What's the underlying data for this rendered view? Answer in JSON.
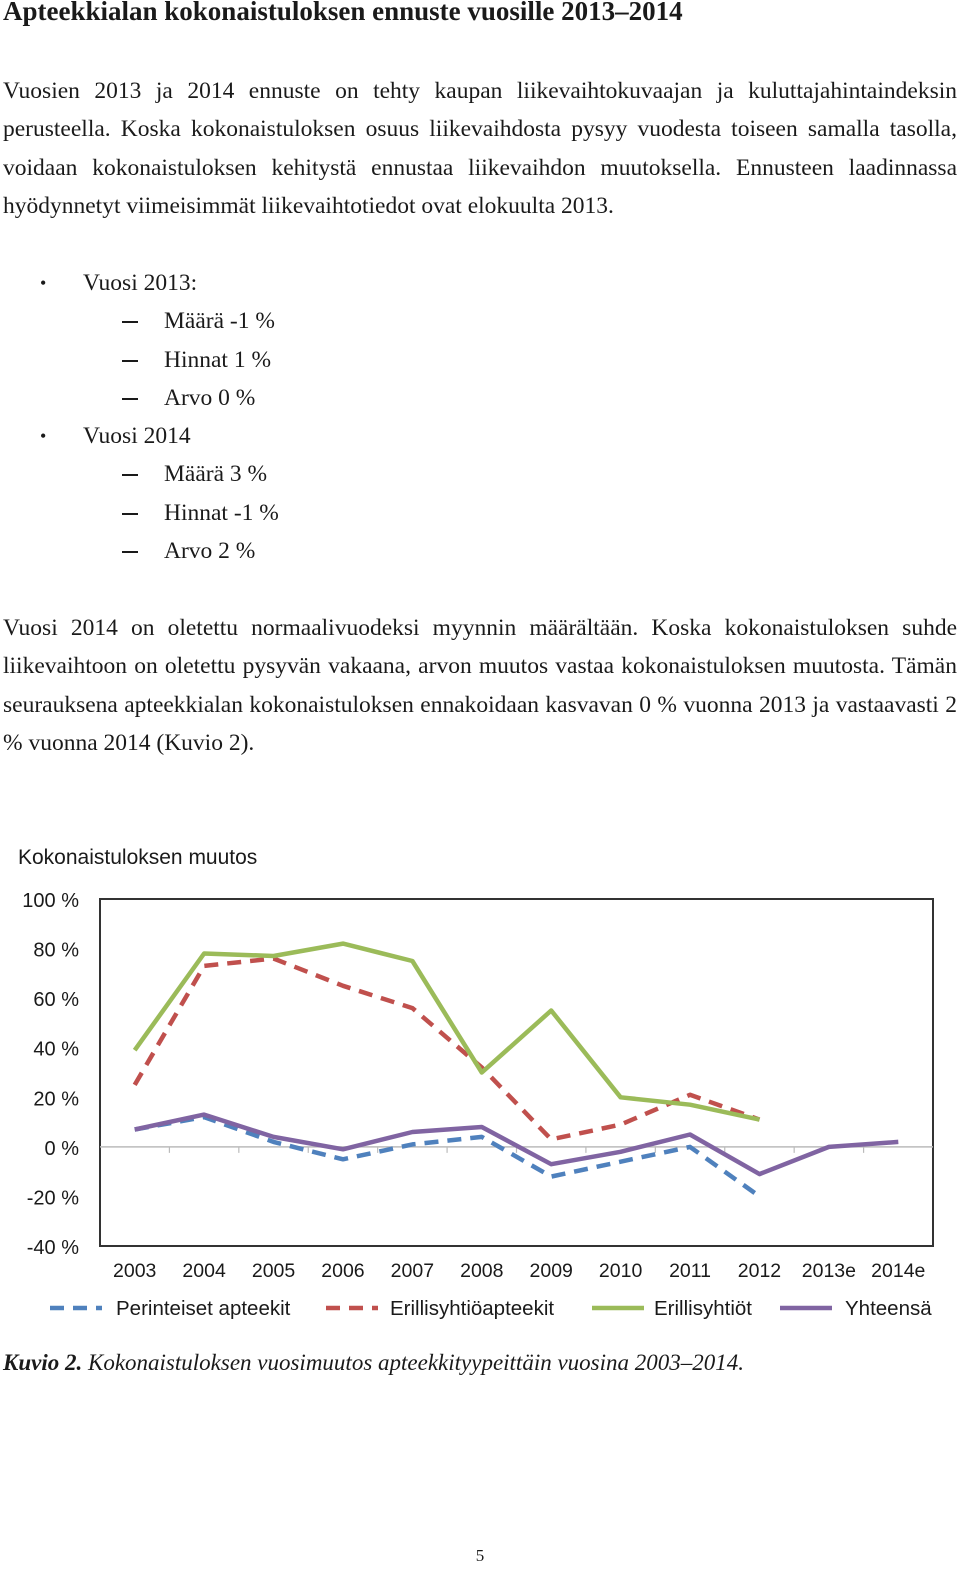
{
  "heading": "Apteekkialan kokonaistuloksen ennuste vuosille 2013–2014",
  "paragraph1": "Vuosien 2013 ja 2014 ennuste on tehty kaupan liikevaihtokuvaajan ja kuluttajahintaindeksin perusteella. Koska kokonaistuloksen osuus liikevaihdosta pysyy vuodesta toiseen samalla tasolla, voidaan kokonaistuloksen kehitystä ennustaa liikevaihdon muutoksella. Ennusteen laadinnassa hyödynnetyt viimeisimmät liikevaihtotiedot ovat elokuulta 2013.",
  "forecast": {
    "year2013": {
      "label": "Vuosi 2013:",
      "items": [
        "Määrä -1 %",
        "Hinnat 1 %",
        "Arvo 0 %"
      ]
    },
    "year2014": {
      "label": "Vuosi 2014",
      "items": [
        "Määrä 3 %",
        "Hinnat -1 %",
        "Arvo 2 %"
      ]
    }
  },
  "paragraph2": "Vuosi 2014 on oletettu normaalivuodeksi myynnin määrältään. Koska kokonaistuloksen suhde liikevaihtoon on oletettu pysyvän vakaana, arvon muutos vastaa kokonaistuloksen muutosta. Tämän seurauksena apteekkialan kokonaistuloksen ennakoidaan kasvavan 0 % vuonna 2013 ja vastaavasti 2 % vuonna 2014 (Kuvio 2).",
  "chart_data": {
    "type": "line",
    "title": "Kokonaistuloksen muutos",
    "xlabel": "",
    "ylabel": "",
    "categories": [
      "2003",
      "2004",
      "2005",
      "2006",
      "2007",
      "2008",
      "2009",
      "2010",
      "2011",
      "2012",
      "2013e",
      "2014e"
    ],
    "ylim": [
      -40,
      100
    ],
    "yticks": [
      100,
      80,
      60,
      40,
      20,
      0,
      -20,
      -40
    ],
    "ytick_labels": [
      "100 %",
      "80 %",
      "60 %",
      "40 %",
      "20 %",
      "0 %",
      "-20 %",
      "-40 %"
    ],
    "grid": false,
    "legend_position": "bottom",
    "series": [
      {
        "name": "Perinteiset apteekit",
        "color": "#4f81bd",
        "dash": "dashed",
        "values": [
          7,
          12,
          2,
          -5,
          1,
          4,
          -12,
          -6,
          0,
          -20,
          null,
          null
        ]
      },
      {
        "name": "Erillisyhtiöapteekit",
        "color": "#c0504d",
        "dash": "dashed",
        "values": [
          25,
          73,
          76,
          65,
          56,
          32,
          3,
          9,
          21,
          11,
          null,
          null
        ]
      },
      {
        "name": "Erillisyhtiöt",
        "color": "#9bbb59",
        "dash": "solid",
        "values": [
          39,
          78,
          77,
          82,
          75,
          30,
          55,
          20,
          17,
          11,
          null,
          null
        ]
      },
      {
        "name": "Yhteensä",
        "color": "#8064a2",
        "dash": "solid",
        "values": [
          7,
          13,
          4,
          -1,
          6,
          8,
          -7,
          -2,
          5,
          -11,
          0,
          2
        ]
      }
    ]
  },
  "caption": {
    "label": "Kuvio 2.",
    "text": "Kokonaistuloksen vuosimuutos apteekkityypeittäin vuosina 2003–2014."
  },
  "page_number": "5"
}
